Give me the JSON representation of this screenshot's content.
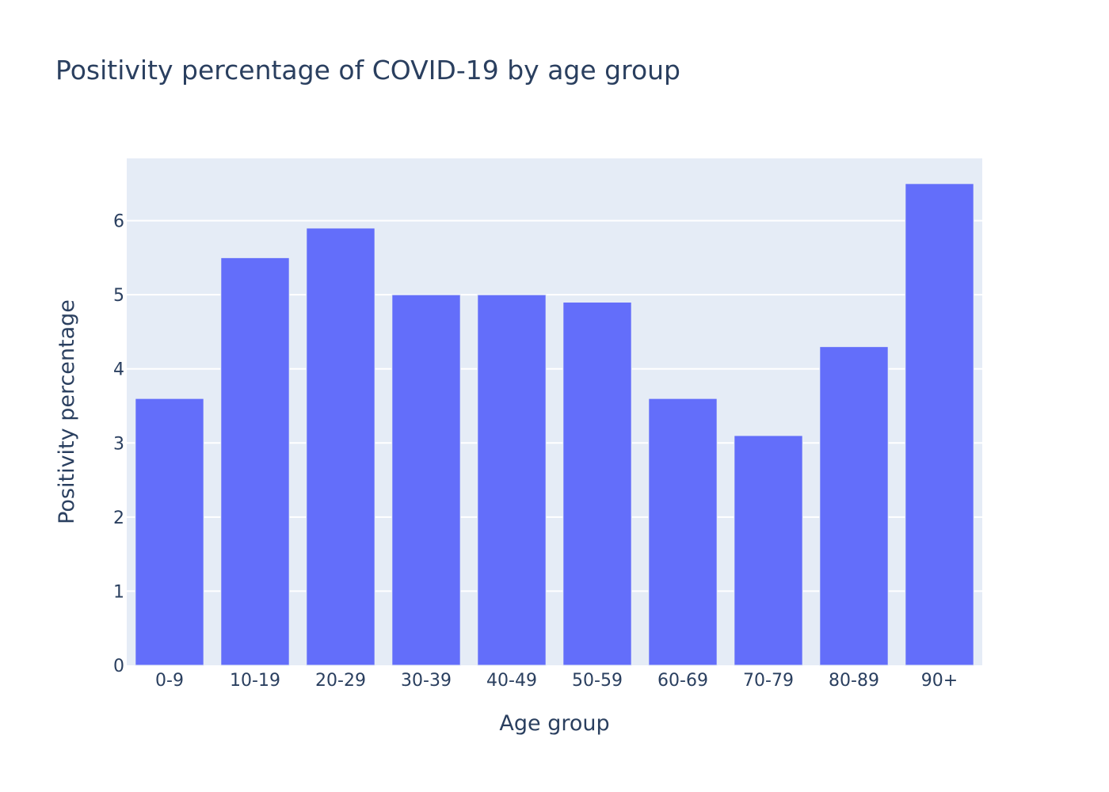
{
  "chart_data": {
    "type": "bar",
    "title": "Positivity percentage of COVID-19 by age group",
    "xlabel": "Age group",
    "ylabel": "Positivity percentage",
    "categories": [
      "0-9",
      "10-19",
      "20-29",
      "30-39",
      "40-49",
      "50-59",
      "60-69",
      "70-79",
      "80-89",
      "90+"
    ],
    "values": [
      3.6,
      5.5,
      5.9,
      5.0,
      5.0,
      4.9,
      3.6,
      3.1,
      4.3,
      6.5
    ],
    "ylim": [
      0,
      6.84
    ],
    "yticks": [
      0,
      1,
      2,
      3,
      4,
      5,
      6
    ],
    "grid": true,
    "colors": {
      "bar": "#636efa",
      "plot_background": "#e5ecf6",
      "gridline": "#ffffff",
      "text": "#2a3f5f"
    }
  }
}
